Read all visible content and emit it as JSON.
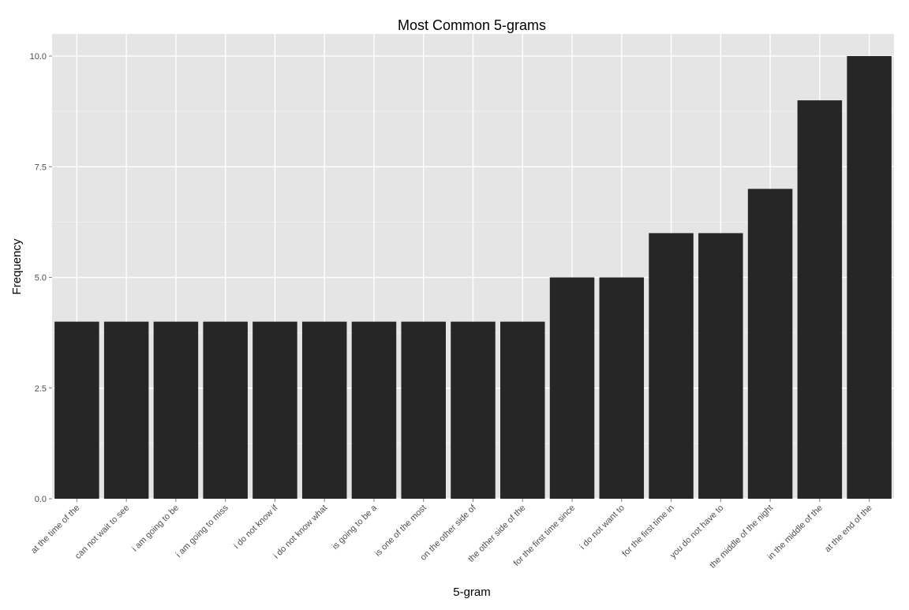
{
  "chart_data": {
    "type": "bar",
    "title": "Most Common 5-grams",
    "xlabel": "5-gram",
    "ylabel": "Frequency",
    "categories": [
      "at the time of the",
      "can not wait to see",
      "i am going to be",
      "i am going to miss",
      "i do not know if",
      "i do not know what",
      "is going to be a",
      "is one of the most",
      "on the other side of",
      "the other side of the",
      "for the first time since",
      "i do not want to",
      "for the first time in",
      "you do not have to",
      "the middle of the night",
      "in the middle of the",
      "at the end of the"
    ],
    "values": [
      4,
      4,
      4,
      4,
      4,
      4,
      4,
      4,
      4,
      4,
      5,
      5,
      6,
      6,
      7,
      9,
      10
    ],
    "ylim": [
      0,
      10.5
    ],
    "yticks": [
      0,
      2.5,
      5,
      7.5,
      10
    ],
    "ytick_labels": [
      "0.0",
      "2.5",
      "5.0",
      "7.5",
      "10.0"
    ],
    "grid": true,
    "legend": "none",
    "colors": {
      "bar": "#262626",
      "panel": "#e5e5e5",
      "grid_major": "#ffffff",
      "grid_minor": "#f0f0f0",
      "tick": "#7f7f7f"
    }
  }
}
